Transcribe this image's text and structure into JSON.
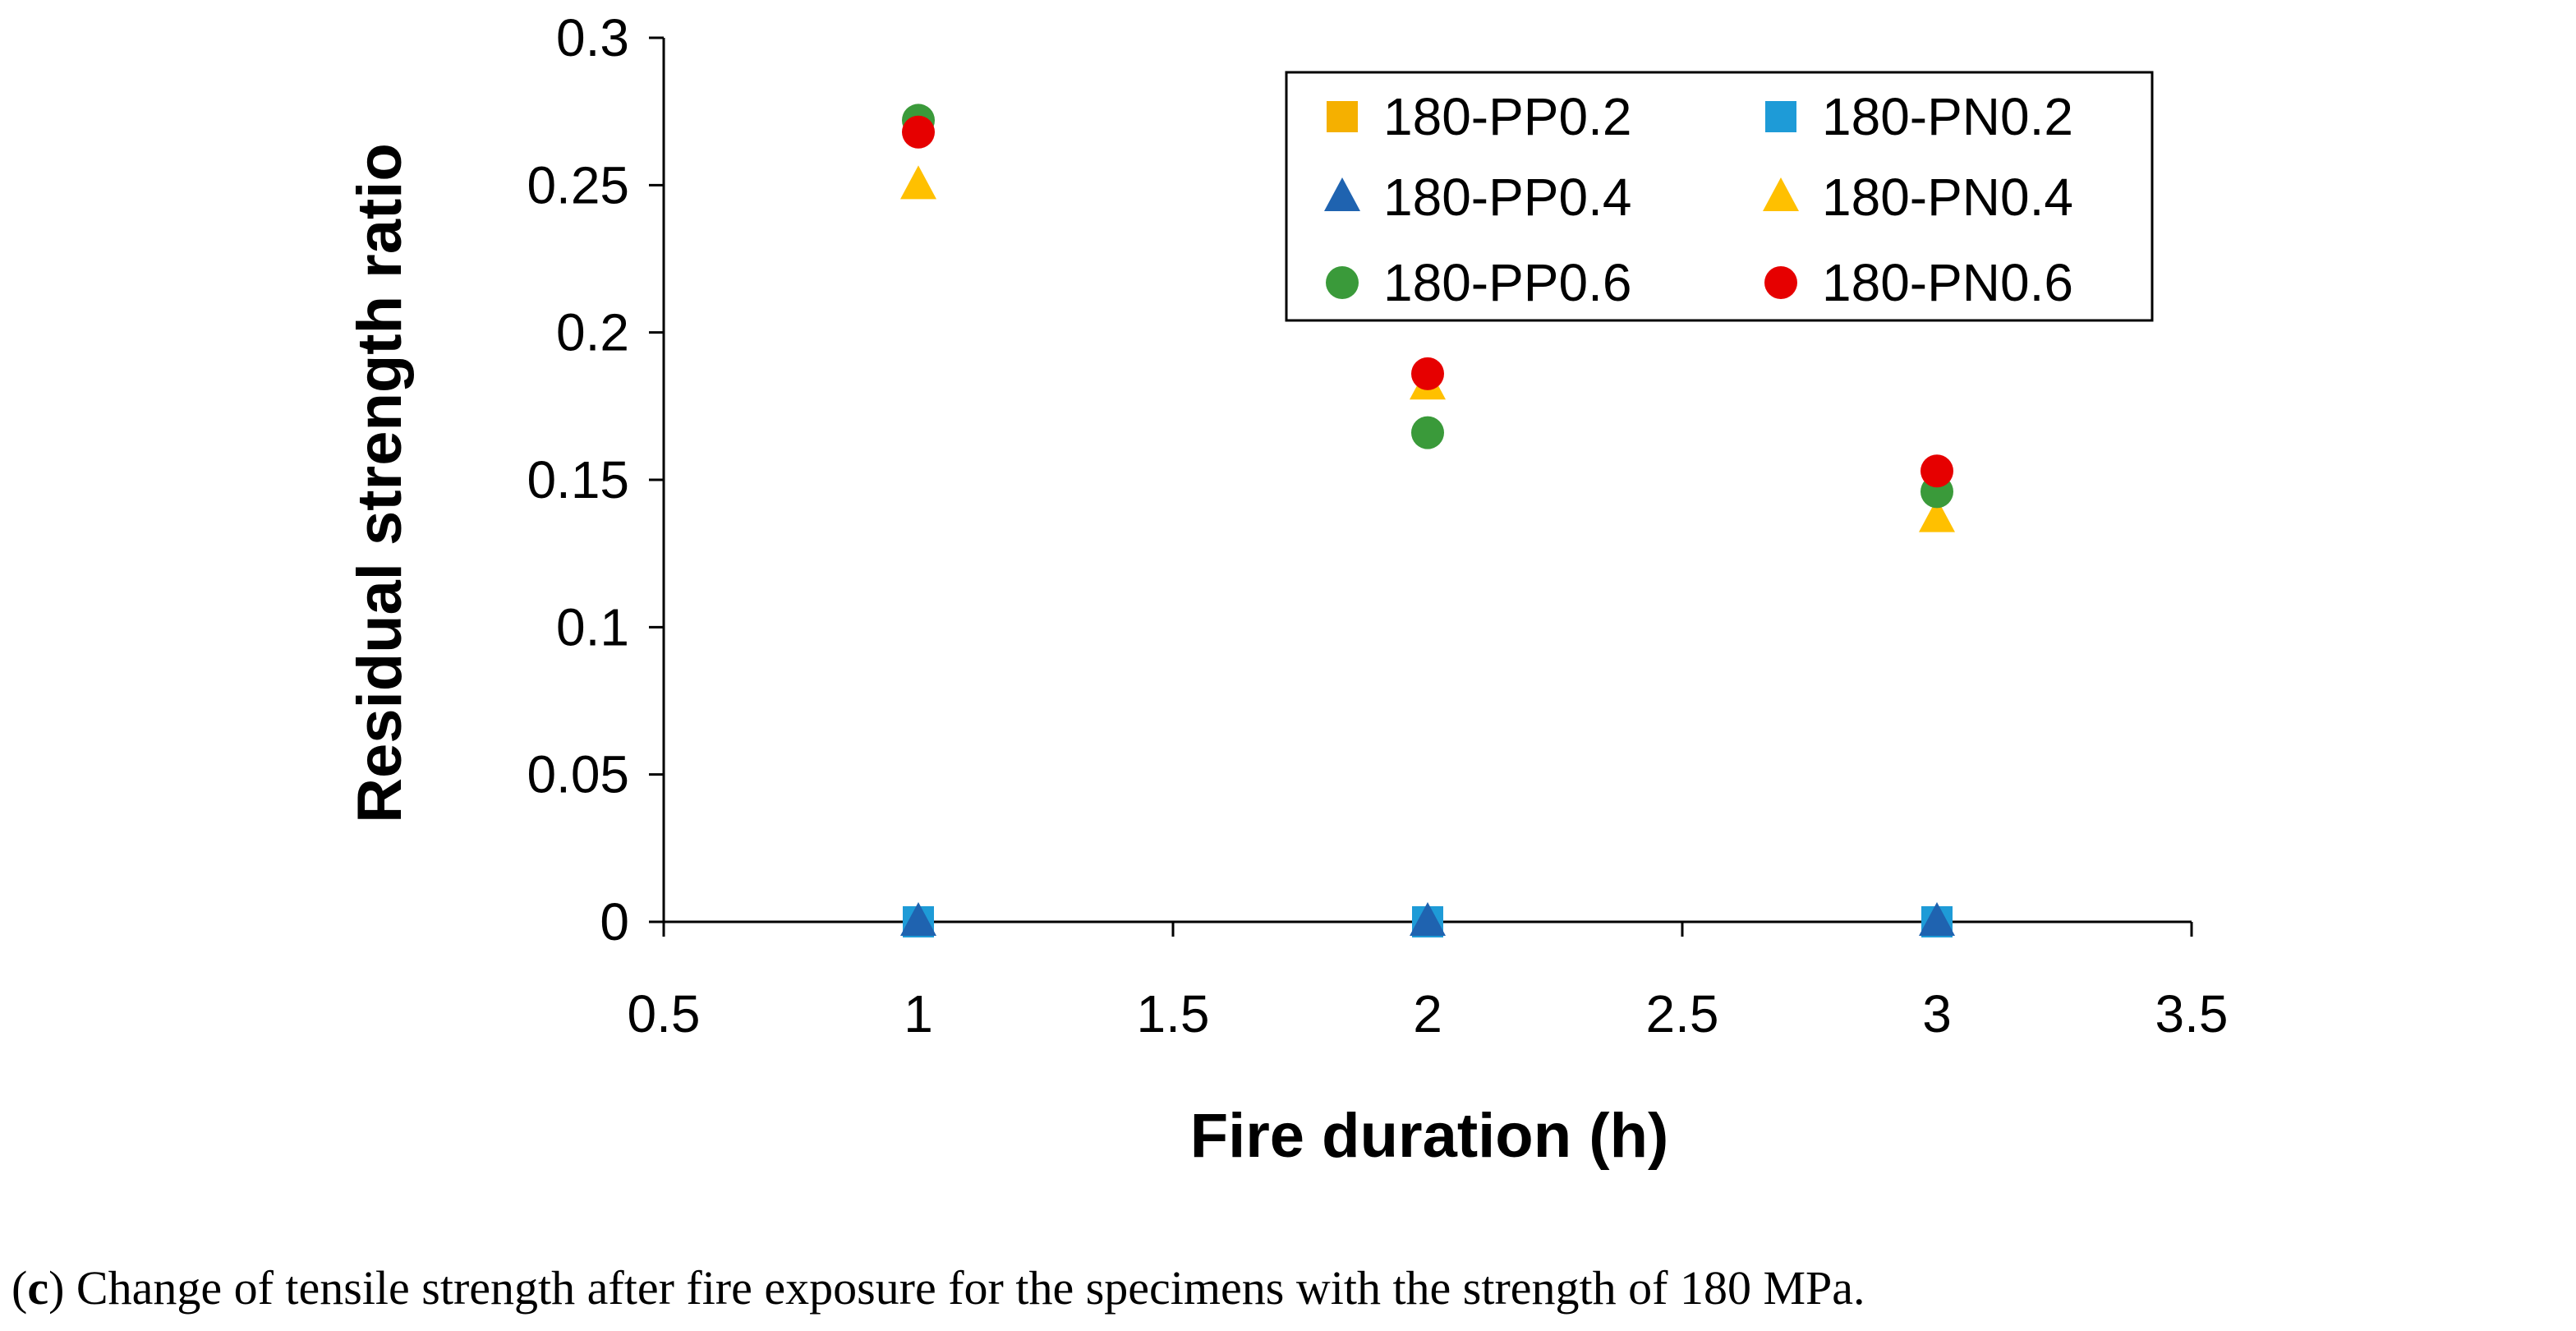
{
  "chart_data": {
    "type": "scatter",
    "title": "",
    "xlabel": "Fire duration (h)",
    "ylabel": "Residual strength ratio",
    "xlim": [
      0.5,
      3.5
    ],
    "ylim": [
      0,
      0.3
    ],
    "xticks": [
      "0.5",
      "1",
      "1.5",
      "2",
      "2.5",
      "3",
      "3.5"
    ],
    "yticks": [
      "0",
      "0.05",
      "0.1",
      "0.15",
      "0.2",
      "0.25",
      "0.3"
    ],
    "grid": false,
    "legend_position": "top-right",
    "series": [
      {
        "name": "180-PP0.2",
        "marker": "square",
        "color": "#F5B000",
        "x": [
          1,
          2,
          3
        ],
        "y": [
          0,
          0,
          0
        ]
      },
      {
        "name": "180-PN0.2",
        "marker": "square",
        "color": "#1E9BD7",
        "x": [
          1,
          2,
          3
        ],
        "y": [
          0,
          0,
          0
        ]
      },
      {
        "name": "180-PP0.4",
        "marker": "triangle",
        "color": "#1F63B0",
        "x": [
          1,
          2,
          3
        ],
        "y": [
          0,
          0,
          0
        ]
      },
      {
        "name": "180-PN0.4",
        "marker": "triangle",
        "color": "#FFC000",
        "x": [
          1,
          2,
          3
        ],
        "y": [
          0.25,
          0.182,
          0.137
        ]
      },
      {
        "name": "180-PP0.6",
        "marker": "circle",
        "color": "#3A9A3A",
        "x": [
          1,
          2,
          3
        ],
        "y": [
          0.272,
          0.166,
          0.146
        ]
      },
      {
        "name": "180-PN0.6",
        "marker": "circle",
        "color": "#E60000",
        "x": [
          1,
          2,
          3
        ],
        "y": [
          0.268,
          0.186,
          0.153
        ]
      }
    ]
  },
  "caption": {
    "label": "c",
    "text": "Change of tensile strength after fire exposure for the specimens with the strength of 180 MPa."
  }
}
